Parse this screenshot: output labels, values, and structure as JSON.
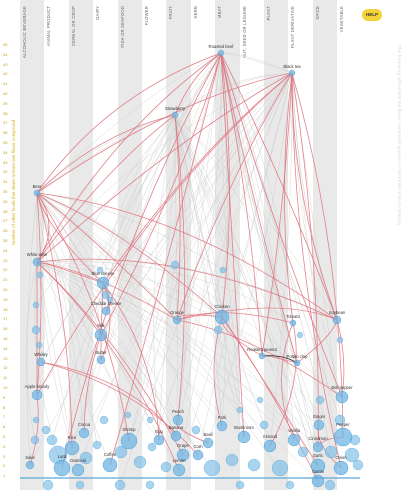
{
  "help_label": "HELP",
  "left_axis_label": "Number of other foods that share at least one flavor compound",
  "right_axis_label": "The frequency with which the flavor compound appears in the foods of each category",
  "columns": [
    {
      "label": "ALCOHOLIC BEVERAGE"
    },
    {
      "label": "ANIMAL PRODUCT"
    },
    {
      "label": "CEREAL OR CROP"
    },
    {
      "label": "DAIRY"
    },
    {
      "label": "FISH OR SEAFOOD"
    },
    {
      "label": "FLOWER"
    },
    {
      "label": "FRUIT"
    },
    {
      "label": "HERB"
    },
    {
      "label": "MEAT"
    },
    {
      "label": "NUT, SEED OR LEGUME"
    },
    {
      "label": "PLANT"
    },
    {
      "label": "PLANT DERIVATIVE"
    },
    {
      "label": "SPICE"
    },
    {
      "label": "VEGETABLE"
    }
  ],
  "scale_values": [
    "45",
    "44",
    "43",
    "42",
    "41",
    "40",
    "39",
    "38",
    "37",
    "36",
    "35",
    "34",
    "33",
    "32",
    "31",
    "30",
    "29",
    "28",
    "27",
    "26",
    "25",
    "24",
    "23",
    "22",
    "21",
    "20",
    "19",
    "18",
    "17",
    "16",
    "15",
    "14",
    "13",
    "12",
    "11",
    "10",
    "9",
    "8",
    "7",
    "6",
    "5",
    "4",
    "3",
    "2",
    "1"
  ],
  "foods": {
    "roasted_beef": "Roasted beef",
    "black_tea": "Black tea",
    "strawberry": "Strawberry",
    "beer": "Beer",
    "white_wine": "White wine",
    "blue_cheese": "Blue cheese",
    "orange": "Orange",
    "soybean": "Soybean",
    "roasted_peanut": "Roasted peanut",
    "tomato": "Tomato",
    "bell_pepper": "Bell pepper",
    "potato_chip": "Potato chip",
    "apple_brandy": "Apple brandy",
    "chicken": "Chicken",
    "milk": "Milk",
    "lard": "Lard",
    "sake": "Sake",
    "rice": "Rice",
    "cocoa": "Cocoa",
    "shrimp": "Shrimp",
    "coffee": "Coffee",
    "mushroom": "Mushroom",
    "corn": "Corn",
    "whisky": "Whisky",
    "cheddar": "Cheddar cheese",
    "egg": "Egg",
    "butter": "Butter",
    "peach": "Peach",
    "grape": "Grape",
    "banana": "Banana",
    "lemon": "Lemon",
    "cinnamon": "Cinnamon",
    "pepper": "Pepper",
    "pork": "Pork",
    "basil": "Basil",
    "ginger": "Ginger",
    "onion": "Onion",
    "garlic": "Garlic",
    "almond": "Almond",
    "vanilla": "Vanilla",
    "oatmeal": "Oatmeal",
    "cumin": "Cumin"
  }
}
